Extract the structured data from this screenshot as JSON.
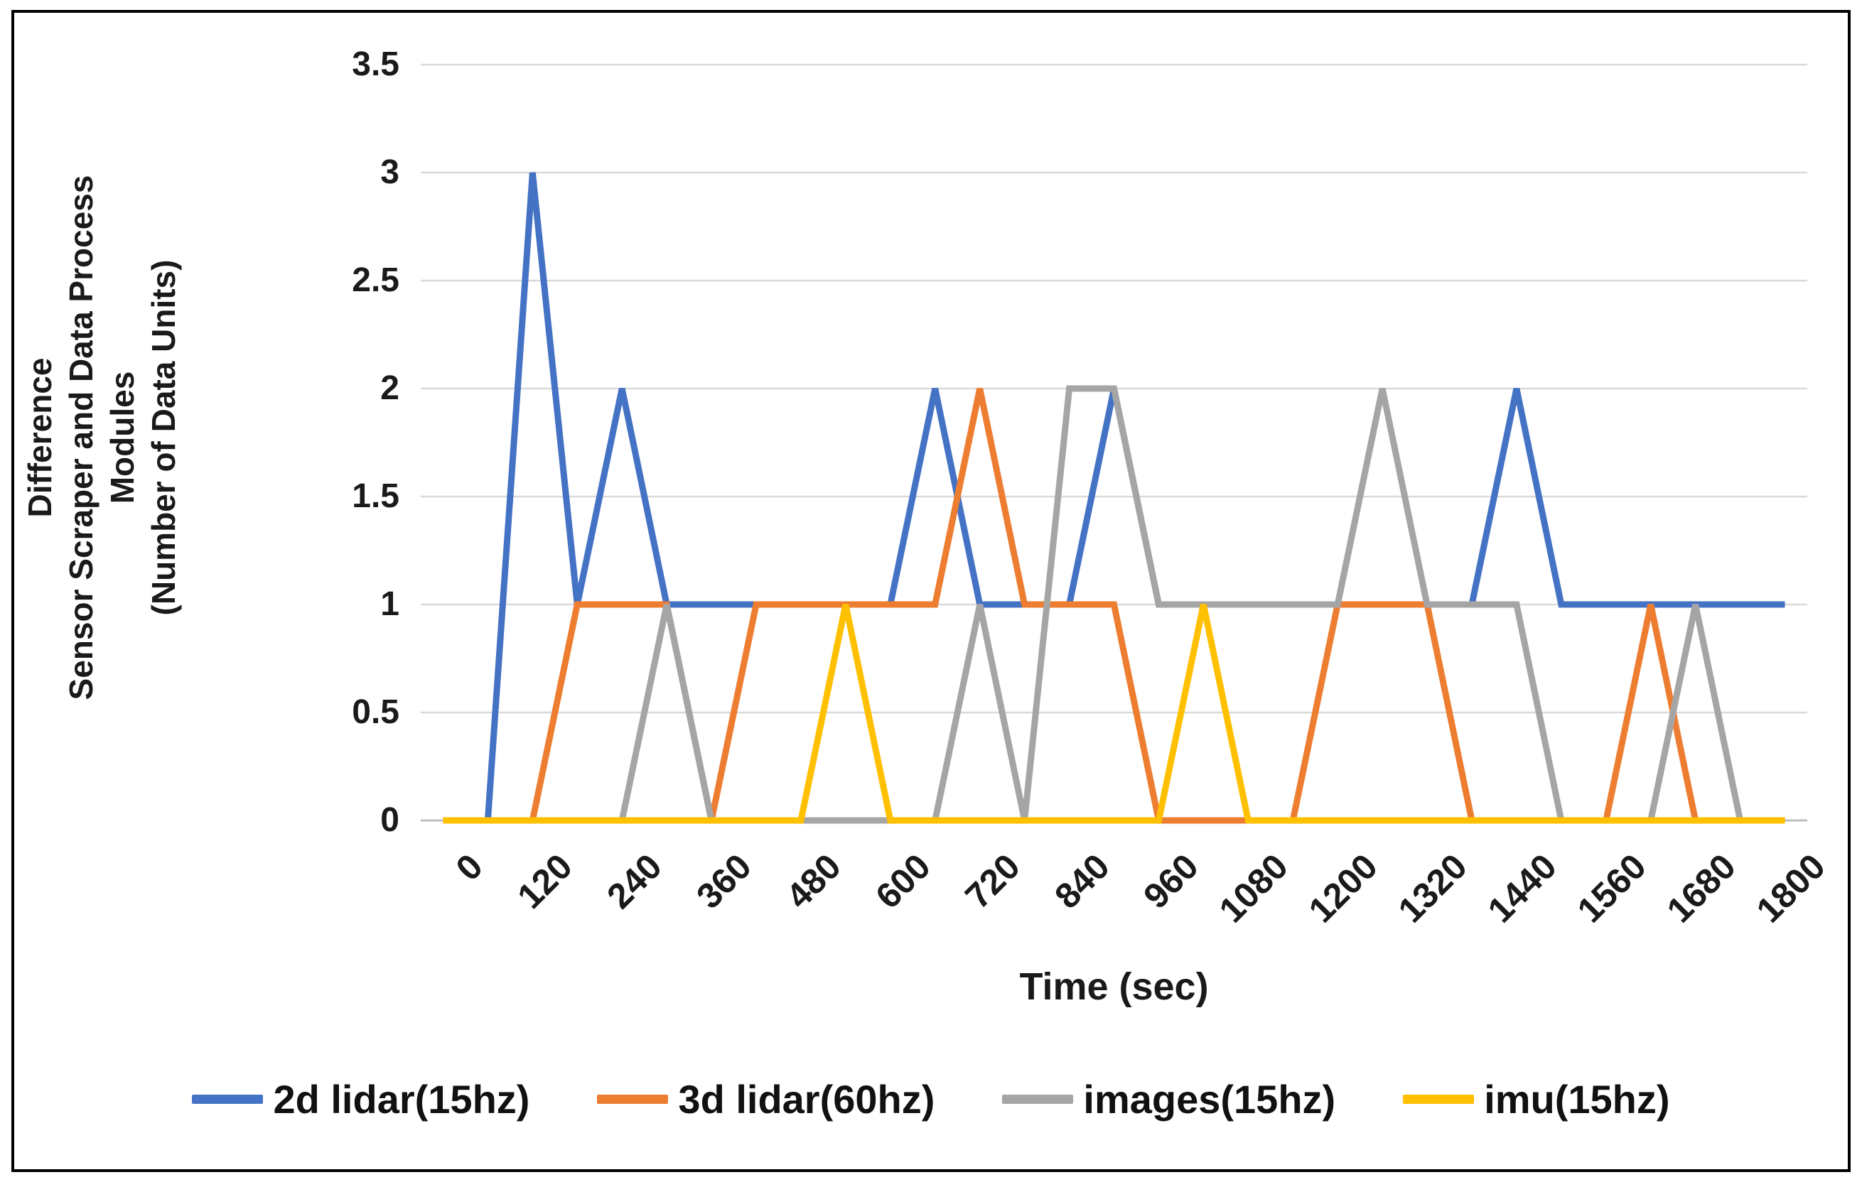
{
  "figure": {
    "background": "#FFFFFF",
    "border_color": "#000000"
  },
  "chart_data": {
    "type": "line",
    "title": "",
    "xlabel": "Time (sec)",
    "ylabel_lines": [
      "Difference",
      "Sensor Scraper and Data Process",
      "Modules",
      "(Number of Data Units)"
    ],
    "x": [
      0,
      60,
      120,
      180,
      240,
      300,
      360,
      420,
      480,
      540,
      600,
      660,
      720,
      780,
      840,
      900,
      960,
      1020,
      1080,
      1140,
      1200,
      1260,
      1320,
      1380,
      1440,
      1500,
      1560,
      1620,
      1680,
      1740,
      1800
    ],
    "x_tick_labels": [
      "0",
      "120",
      "240",
      "360",
      "480",
      "600",
      "720",
      "840",
      "960",
      "1080",
      "1200",
      "1320",
      "1440",
      "1560",
      "1680",
      "1800"
    ],
    "y_tick_labels": [
      "0",
      "0.5",
      "1",
      "1.5",
      "2",
      "2.5",
      "3",
      "3.5"
    ],
    "y_ticks": [
      0,
      0.5,
      1,
      1.5,
      2,
      2.5,
      3,
      3.5
    ],
    "ylim": [
      0,
      3.5
    ],
    "grid": "horizontal",
    "gridline_color": "#D9D9D9",
    "axis_line_color": "#BFBFBF",
    "legend_position": "bottom",
    "series": [
      {
        "name": "2d lidar(15hz)",
        "color": "#4472C4",
        "values": [
          0,
          0,
          3,
          1,
          2,
          1,
          1,
          1,
          1,
          1,
          1,
          2,
          1,
          1,
          1,
          2,
          1,
          1,
          1,
          1,
          1,
          1,
          1,
          1,
          2,
          1,
          1,
          1,
          1,
          1,
          1
        ]
      },
      {
        "name": "3d lidar(60hz)",
        "color": "#ED7D31",
        "values": [
          0,
          0,
          0,
          1,
          1,
          1,
          0,
          1,
          1,
          1,
          1,
          1,
          2,
          1,
          1,
          1,
          0,
          0,
          0,
          0,
          1,
          1,
          1,
          0,
          0,
          0,
          0,
          1,
          0,
          0,
          0
        ]
      },
      {
        "name": "images(15hz)",
        "color": "#A5A5A5",
        "values": [
          0,
          0,
          0,
          0,
          0,
          1,
          0,
          0,
          0,
          0,
          0,
          0,
          1,
          0,
          2,
          2,
          1,
          1,
          1,
          1,
          1,
          2,
          1,
          1,
          1,
          0,
          0,
          0,
          1,
          0,
          0
        ]
      },
      {
        "name": "imu(15hz)",
        "color": "#FFC000",
        "values": [
          0,
          0,
          0,
          0,
          0,
          0,
          0,
          0,
          0,
          1,
          0,
          0,
          0,
          0,
          0,
          0,
          0,
          1,
          0,
          0,
          0,
          0,
          0,
          0,
          0,
          0,
          0,
          0,
          0,
          0,
          0
        ]
      }
    ]
  }
}
